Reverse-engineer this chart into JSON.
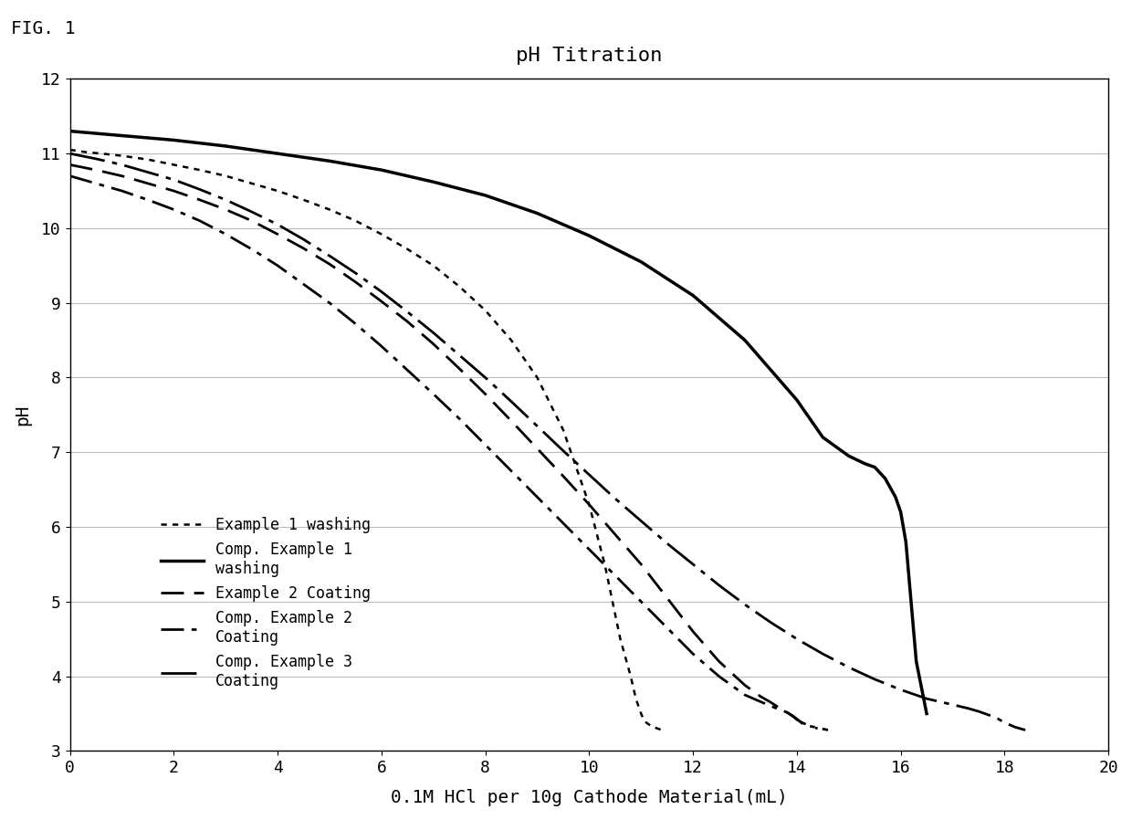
{
  "title": "pH Titration",
  "xlabel": "0.1M HCl per 10g Cathode Material(mL)",
  "ylabel": "pH",
  "fig_label": "FIG. 1",
  "xlim": [
    0,
    20
  ],
  "ylim": [
    3,
    12
  ],
  "xticks": [
    0,
    2,
    4,
    6,
    8,
    10,
    12,
    14,
    16,
    18,
    20
  ],
  "yticks": [
    3,
    4,
    5,
    6,
    7,
    8,
    9,
    10,
    11,
    12
  ],
  "background_color": "#ffffff",
  "grid_color": "#bbbbbb",
  "title_fontsize": 16,
  "label_fontsize": 14,
  "tick_fontsize": 13,
  "legend_fontsize": 12,
  "series": [
    {
      "label": "Example 1 washing",
      "style_idx": 0,
      "x": [
        0,
        0.3,
        0.6,
        1.0,
        1.5,
        2.0,
        2.5,
        3.0,
        3.5,
        4.0,
        4.5,
        5.0,
        5.5,
        6.0,
        6.5,
        7.0,
        7.5,
        8.0,
        8.5,
        9.0,
        9.5,
        10.0,
        10.3,
        10.6,
        10.8,
        10.9,
        11.0,
        11.05,
        11.1,
        11.2,
        11.4
      ],
      "y": [
        11.05,
        11.02,
        11.0,
        10.97,
        10.92,
        10.85,
        10.78,
        10.7,
        10.6,
        10.5,
        10.38,
        10.25,
        10.1,
        9.92,
        9.72,
        9.5,
        9.22,
        8.9,
        8.5,
        8.0,
        7.3,
        6.3,
        5.5,
        4.5,
        4.0,
        3.7,
        3.5,
        3.42,
        3.38,
        3.33,
        3.28
      ]
    },
    {
      "label": "Comp. Example 1\nwashing",
      "style_idx": 1,
      "x": [
        0,
        0.5,
        1.0,
        1.5,
        2.0,
        2.5,
        3.0,
        3.5,
        4.0,
        5.0,
        6.0,
        7.0,
        8.0,
        9.0,
        10.0,
        11.0,
        12.0,
        13.0,
        13.5,
        14.0,
        14.5,
        15.0,
        15.3,
        15.5,
        15.7,
        15.9,
        16.0,
        16.1,
        16.2,
        16.3,
        16.5
      ],
      "y": [
        11.3,
        11.27,
        11.24,
        11.21,
        11.18,
        11.14,
        11.1,
        11.05,
        11.0,
        10.9,
        10.78,
        10.62,
        10.44,
        10.2,
        9.9,
        9.55,
        9.1,
        8.5,
        8.1,
        7.7,
        7.2,
        6.95,
        6.85,
        6.8,
        6.65,
        6.4,
        6.2,
        5.8,
        5.0,
        4.2,
        3.5
      ]
    },
    {
      "label": "Example 2 Coating",
      "style_idx": 2,
      "x": [
        0,
        0.5,
        1.0,
        1.5,
        2.0,
        2.5,
        3.0,
        3.5,
        4.0,
        4.5,
        5.0,
        5.5,
        6.0,
        6.5,
        7.0,
        7.5,
        8.0,
        8.5,
        9.0,
        9.5,
        10.0,
        10.5,
        11.0,
        11.5,
        12.0,
        12.5,
        13.0,
        13.3,
        13.5,
        13.7,
        13.85,
        13.95,
        14.0,
        14.1,
        14.2,
        14.4
      ],
      "y": [
        10.85,
        10.78,
        10.7,
        10.6,
        10.5,
        10.38,
        10.25,
        10.1,
        9.92,
        9.73,
        9.52,
        9.28,
        9.02,
        8.75,
        8.45,
        8.12,
        7.78,
        7.42,
        7.05,
        6.68,
        6.3,
        5.9,
        5.5,
        5.05,
        4.6,
        4.2,
        3.88,
        3.73,
        3.65,
        3.56,
        3.5,
        3.45,
        3.42,
        3.38,
        3.35,
        3.3
      ]
    },
    {
      "label": "Comp. Example 2\nCoating",
      "style_idx": 3,
      "x": [
        0,
        0.5,
        1.0,
        1.5,
        2.0,
        2.5,
        3.0,
        3.5,
        4.0,
        4.5,
        5.0,
        5.5,
        6.0,
        6.5,
        7.0,
        7.5,
        8.0,
        8.5,
        9.0,
        9.5,
        10.0,
        10.5,
        11.0,
        11.5,
        12.0,
        12.5,
        13.0,
        13.5,
        13.8,
        13.9,
        14.0,
        14.05,
        14.1,
        14.2,
        14.4,
        14.6
      ],
      "y": [
        10.7,
        10.6,
        10.5,
        10.38,
        10.25,
        10.1,
        9.92,
        9.72,
        9.5,
        9.25,
        9.0,
        8.72,
        8.42,
        8.1,
        7.78,
        7.45,
        7.1,
        6.75,
        6.4,
        6.05,
        5.7,
        5.35,
        5.0,
        4.65,
        4.3,
        4.0,
        3.75,
        3.6,
        3.52,
        3.48,
        3.43,
        3.4,
        3.37,
        3.34,
        3.31,
        3.28
      ]
    },
    {
      "label": "Comp. Example 3\nCoating",
      "style_idx": 4,
      "x": [
        0,
        0.5,
        1.0,
        1.5,
        2.0,
        2.5,
        3.0,
        3.5,
        4.0,
        4.5,
        5.0,
        5.5,
        6.0,
        6.5,
        7.0,
        7.5,
        8.0,
        8.5,
        9.0,
        9.5,
        10.0,
        10.5,
        11.0,
        11.5,
        12.0,
        12.5,
        13.0,
        13.5,
        14.0,
        14.5,
        15.0,
        15.5,
        16.0,
        16.5,
        17.0,
        17.3,
        17.5,
        17.7,
        17.85,
        17.95,
        18.0,
        18.1,
        18.2,
        18.4
      ],
      "y": [
        11.0,
        10.93,
        10.85,
        10.75,
        10.65,
        10.52,
        10.38,
        10.22,
        10.05,
        9.85,
        9.63,
        9.4,
        9.15,
        8.88,
        8.6,
        8.3,
        8.0,
        7.68,
        7.35,
        7.02,
        6.7,
        6.38,
        6.08,
        5.78,
        5.5,
        5.22,
        4.96,
        4.72,
        4.5,
        4.3,
        4.12,
        3.96,
        3.82,
        3.7,
        3.62,
        3.57,
        3.53,
        3.48,
        3.44,
        3.4,
        3.38,
        3.35,
        3.32,
        3.28
      ]
    }
  ]
}
